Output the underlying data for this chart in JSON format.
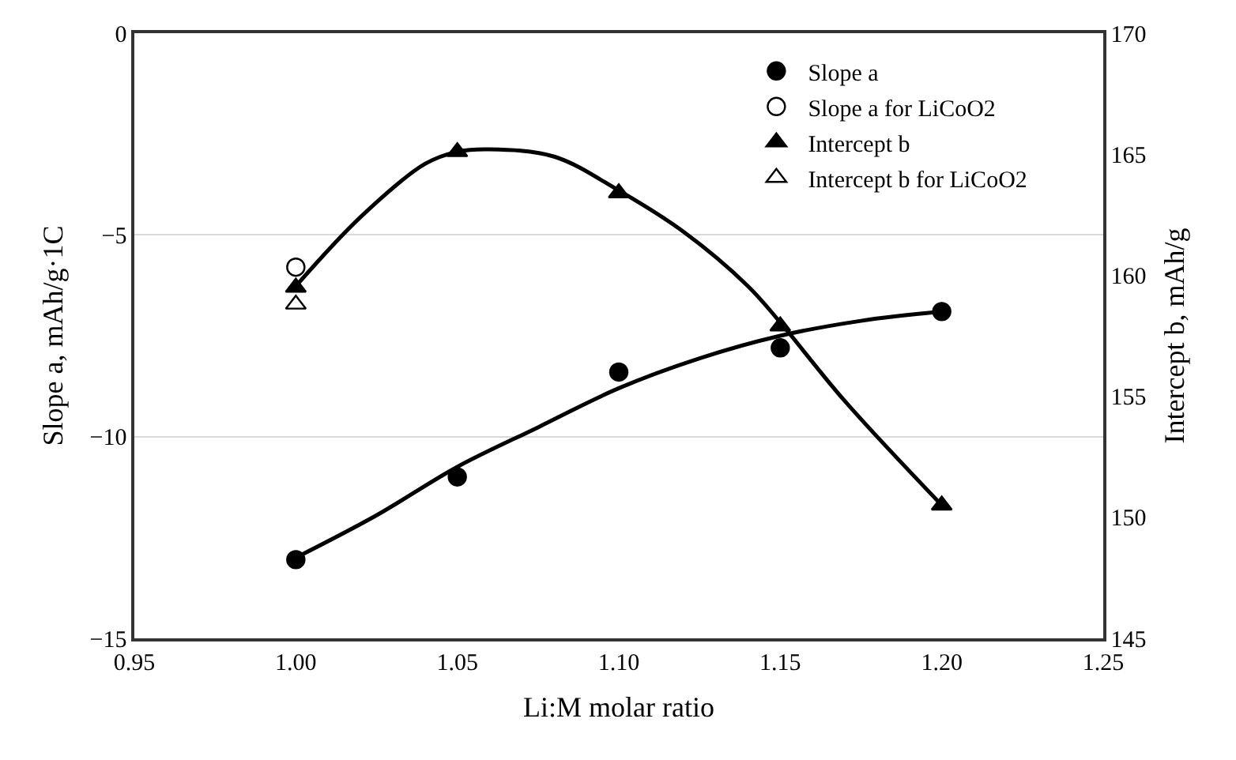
{
  "chart_data": {
    "type": "scatter",
    "xlabel": "Li:M molar ratio",
    "ylabel": "Slope a, mAh/g·1C",
    "y2label": "Intercept b, mAh/g",
    "xlim": [
      0.95,
      1.25
    ],
    "xticks": [
      {
        "value": 0.95,
        "label": "0.95"
      },
      {
        "value": 1.0,
        "label": "1.00"
      },
      {
        "value": 1.05,
        "label": "1.05"
      },
      {
        "value": 1.1,
        "label": "1.10"
      },
      {
        "value": 1.15,
        "label": "1.15"
      },
      {
        "value": 1.2,
        "label": "1.20"
      },
      {
        "value": 1.25,
        "label": "1.25"
      }
    ],
    "ylim": [
      -15,
      0
    ],
    "yticks": [
      {
        "value": -15,
        "label": "−15"
      },
      {
        "value": -10,
        "label": "−10"
      },
      {
        "value": -5,
        "label": "−5"
      },
      0
    ],
    "y2lim": [
      145,
      170
    ],
    "y2ticks": [
      145,
      150,
      155,
      160,
      165,
      170
    ],
    "grid": "y",
    "legend": "top right",
    "series": [
      {
        "name": "Slope a",
        "color": "#000000",
        "marker": "circle",
        "x": [
          1.0,
          1.05,
          1.1,
          1.15,
          1.2
        ],
        "values": [
          -13.05,
          -11.0,
          -8.4,
          -7.8,
          -6.9
        ]
      },
      {
        "name": "Slope a for LiCoO2",
        "color": "#ffffff",
        "marker": "circle",
        "x": [
          1.0
        ],
        "values": [
          -5.8
        ]
      },
      {
        "name": "Intercept b",
        "color": "#000000",
        "marker": "triangle",
        "axis": "y2",
        "x": [
          1.0,
          1.05,
          1.1,
          1.15,
          1.2
        ],
        "values": [
          159.5,
          165.1,
          163.4,
          157.9,
          150.5
        ]
      },
      {
        "name": "Intercept b for LiCoO2",
        "color": "#ffffff",
        "marker": "triangle",
        "axis": "y2",
        "x": [
          1.0
        ],
        "values": [
          158.8
        ]
      },
      {
        "type": "line",
        "color": "#000000",
        "marker": "none",
        "line_style": "solid",
        "x": [
          1.0,
          1.025,
          1.05,
          1.075,
          1.1,
          1.125,
          1.15,
          1.175,
          1.2
        ],
        "values": [
          -13.0,
          -11.95,
          -10.75,
          -9.77,
          -8.8,
          -8.06,
          -7.5,
          -7.13,
          -6.9
        ]
      },
      {
        "type": "line",
        "color": "#000000",
        "marker": "none",
        "line_style": "solid",
        "axis": "y2",
        "x": [
          1.0,
          1.02,
          1.04,
          1.05,
          1.06,
          1.08,
          1.1,
          1.12,
          1.14,
          1.15,
          1.17,
          1.2
        ],
        "values": [
          159.55,
          162.4,
          164.6,
          165.1,
          165.2,
          164.9,
          163.5,
          161.8,
          159.55,
          158.05,
          154.8,
          150.5
        ]
      }
    ]
  }
}
